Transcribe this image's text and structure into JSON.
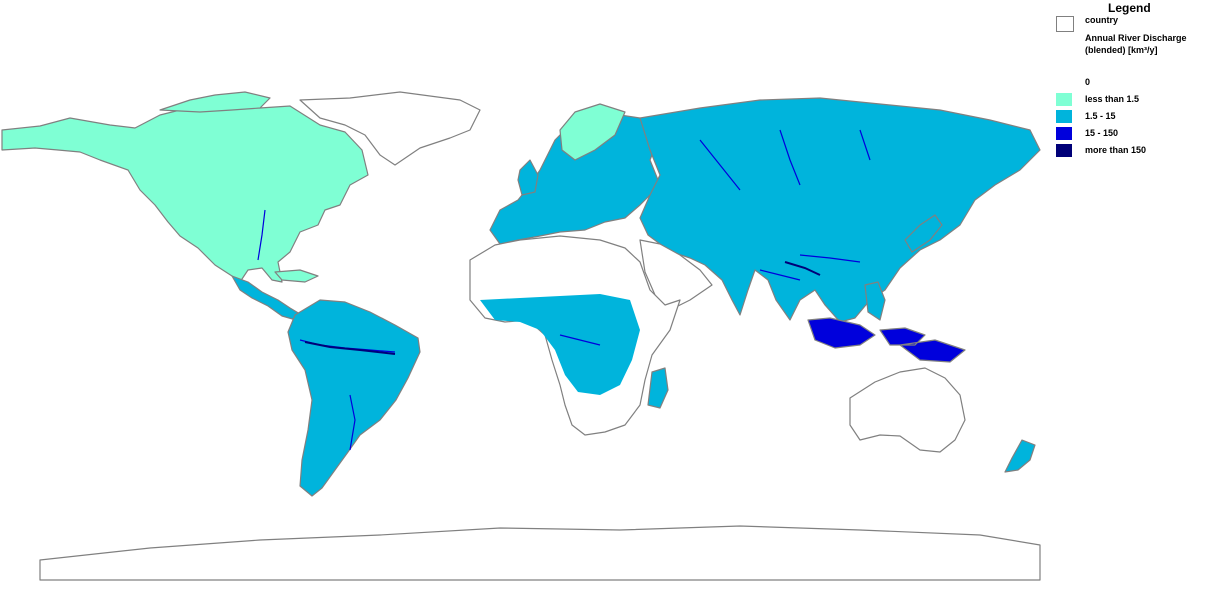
{
  "legend": {
    "title": "Legend",
    "country_label": "country",
    "layer_title_line1": "Annual River Discharge",
    "layer_title_line2": "(blended) [km³/y]",
    "classes": [
      {
        "label": "0",
        "color": "#ffffff"
      },
      {
        "label": "less than 1.5",
        "color": "#7fffd4"
      },
      {
        "label": "1.5 - 15",
        "color": "#00b4dc"
      },
      {
        "label": "15 - 150",
        "color": "#0000dc"
      },
      {
        "label": "more than 150",
        "color": "#000078"
      }
    ]
  },
  "colors": {
    "coastline": "#808080",
    "country_border": "#808080",
    "background": "#ffffff"
  }
}
